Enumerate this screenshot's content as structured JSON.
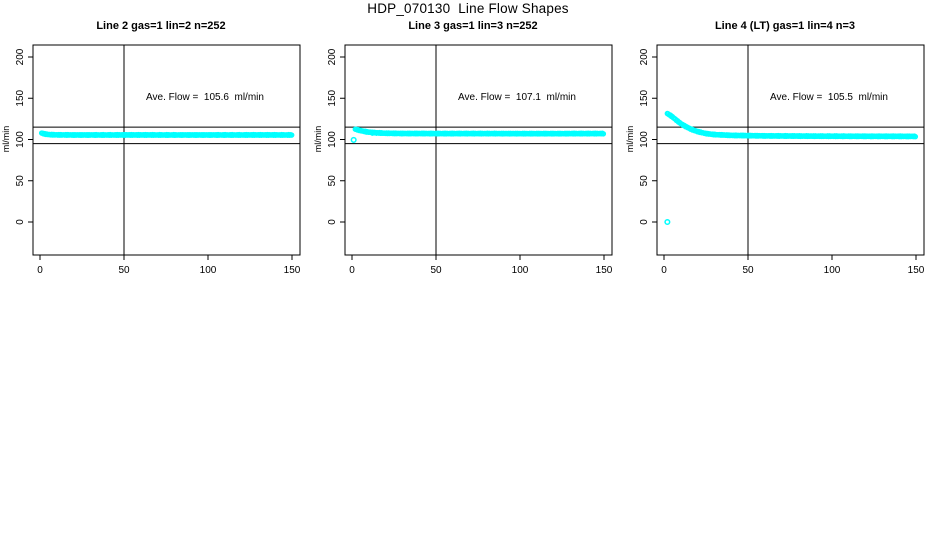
{
  "page_title": "HDP_070130  Line Flow Shapes",
  "colors": {
    "marker": "#00FFFF",
    "axis": "#000000",
    "background": "#FFFFFF"
  },
  "chart_data": [
    {
      "type": "scatter",
      "title": "Line 2 gas=1 lin=2 n=252",
      "annotation": "Ave. Flow =  105.6  ml/min",
      "ave_flow_ml_min": 105.6,
      "n_points": 252,
      "xlabel": "",
      "ylabel": "ml/min",
      "x_ticks": [
        0,
        50,
        100,
        150
      ],
      "y_ticks": [
        0,
        50,
        100,
        150,
        200
      ],
      "xlim": [
        -4,
        155
      ],
      "ylim": [
        -40,
        215
      ],
      "grid": false,
      "legend": "none",
      "ref_h_lines": [
        115,
        95
      ],
      "ref_v_line": 50,
      "band_step_x": 0.6,
      "band_anchors": [
        [
          1,
          107.8
        ],
        [
          3,
          106.6
        ],
        [
          6,
          105.9
        ],
        [
          10,
          105.6
        ],
        [
          20,
          105.5
        ],
        [
          40,
          105.5
        ],
        [
          70,
          105.5
        ],
        [
          100,
          105.5
        ],
        [
          130,
          105.5
        ],
        [
          150,
          105.5
        ]
      ],
      "fringe": {
        "y": 103.6,
        "x_start": 15,
        "x_end": 150,
        "step": 2.6
      },
      "outliers": []
    },
    {
      "type": "scatter",
      "title": "Line 3 gas=1 lin=3 n=252",
      "annotation": "Ave. Flow =  107.1  ml/min",
      "ave_flow_ml_min": 107.1,
      "n_points": 252,
      "xlabel": "",
      "ylabel": "ml/min",
      "x_ticks": [
        0,
        50,
        100,
        150
      ],
      "y_ticks": [
        0,
        50,
        100,
        150,
        200
      ],
      "xlim": [
        -4,
        155
      ],
      "ylim": [
        -40,
        215
      ],
      "grid": false,
      "legend": "none",
      "ref_h_lines": [
        115,
        95
      ],
      "ref_v_line": 50,
      "band_step_x": 0.6,
      "band_anchors": [
        [
          2,
          112.5
        ],
        [
          4,
          111.4
        ],
        [
          6,
          110.4
        ],
        [
          9,
          109.2
        ],
        [
          13,
          108.3
        ],
        [
          20,
          107.6
        ],
        [
          30,
          107.3
        ],
        [
          50,
          107.2
        ],
        [
          80,
          107.2
        ],
        [
          110,
          107.1
        ],
        [
          150,
          107.2
        ]
      ],
      "fringe": {
        "y": 105.2,
        "x_start": 12,
        "x_end": 150,
        "step": 2.6
      },
      "outliers": [
        [
          1,
          99.5
        ]
      ]
    },
    {
      "type": "scatter",
      "title": "Line 4 (LT) gas=1 lin=4 n=3",
      "annotation": "Ave. Flow =  105.5  ml/min",
      "ave_flow_ml_min": 105.5,
      "n_points": 3,
      "xlabel": "",
      "ylabel": "ml/min",
      "x_ticks": [
        0,
        50,
        100,
        150
      ],
      "y_ticks": [
        0,
        50,
        100,
        150,
        200
      ],
      "xlim": [
        -4,
        155
      ],
      "ylim": [
        -40,
        215
      ],
      "grid": false,
      "legend": "none",
      "ref_h_lines": [
        115,
        95
      ],
      "ref_v_line": 50,
      "band_step_x": 0.6,
      "band_anchors": [
        [
          2,
          131.5
        ],
        [
          4,
          129.0
        ],
        [
          6,
          125.8
        ],
        [
          8,
          122.4
        ],
        [
          10,
          119.3
        ],
        [
          13,
          115.6
        ],
        [
          16,
          112.6
        ],
        [
          20,
          109.6
        ],
        [
          25,
          107.2
        ],
        [
          30,
          106.0
        ],
        [
          40,
          105.0
        ],
        [
          60,
          104.4
        ],
        [
          90,
          104.1
        ],
        [
          120,
          103.9
        ],
        [
          150,
          103.8
        ]
      ],
      "fringe": null,
      "outliers": [
        [
          2,
          0
        ]
      ]
    }
  ]
}
